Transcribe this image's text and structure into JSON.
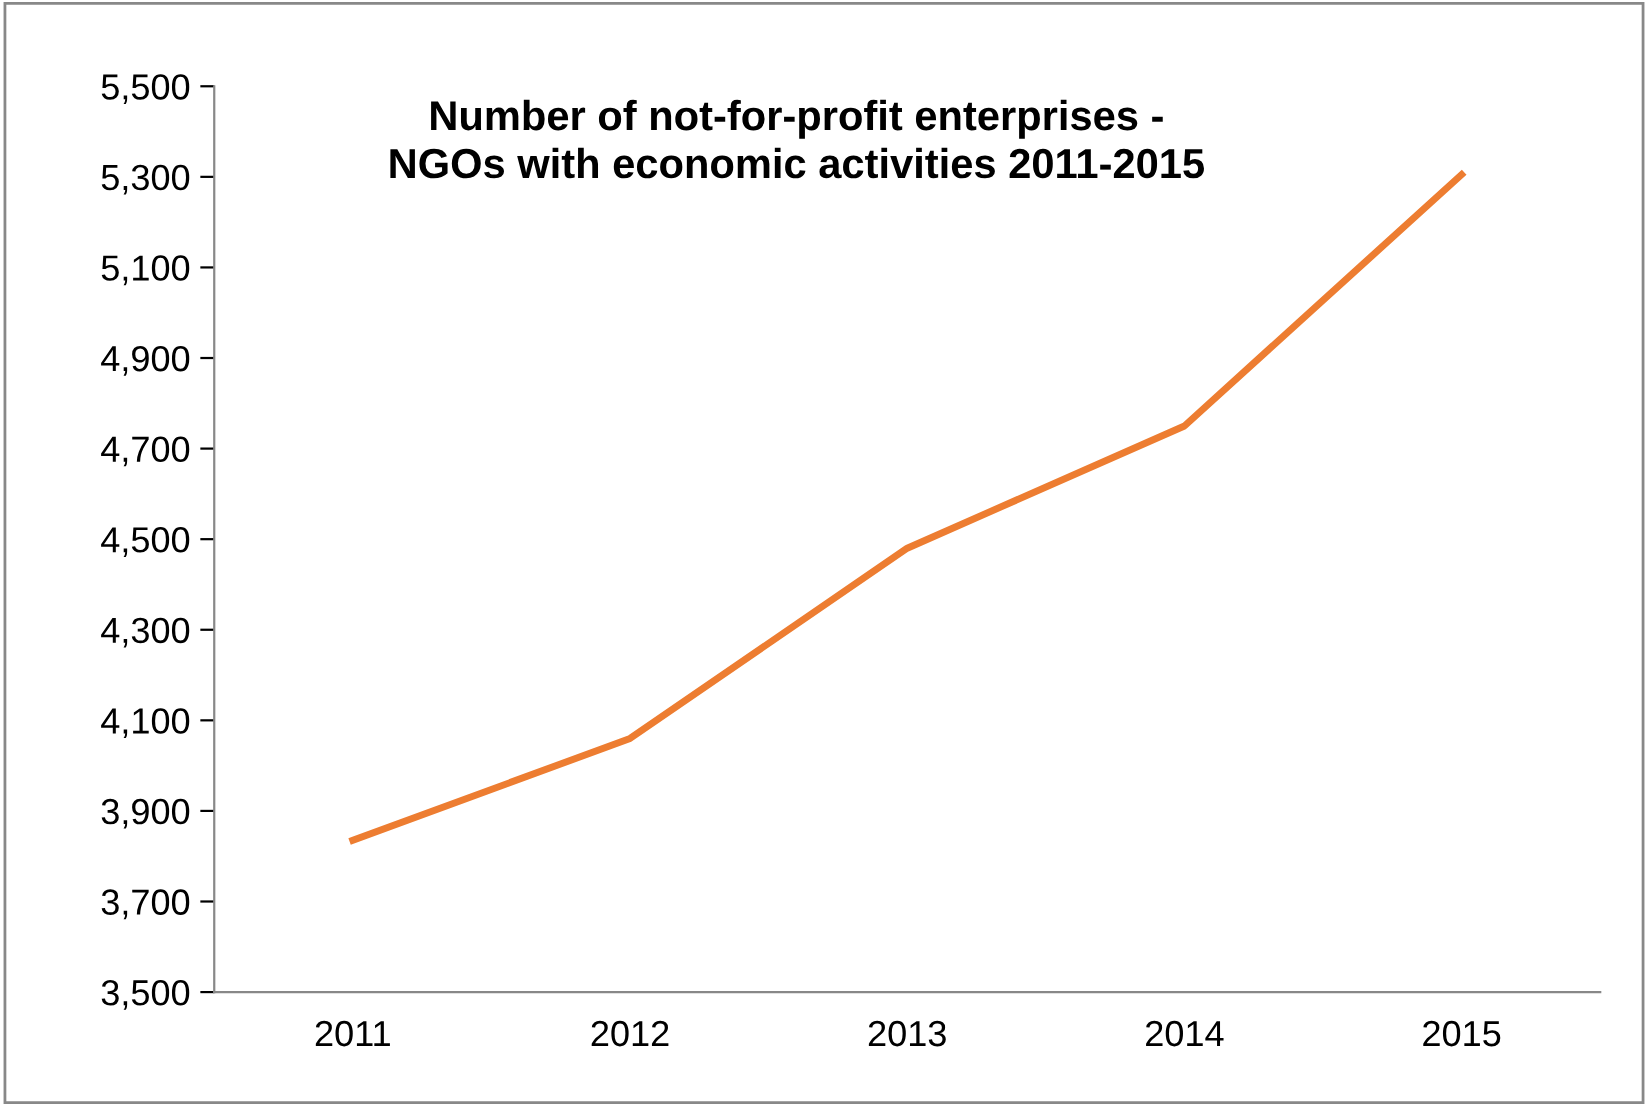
{
  "chart_data": {
    "type": "line",
    "title": "Number of not-for-profit enterprises -\nNGOs with economic activities 2011-2015",
    "categories": [
      "2011",
      "2012",
      "2013",
      "2014",
      "2015"
    ],
    "series": [
      {
        "color": "#ed7d31",
        "values": [
          3835,
          4060,
          4480,
          4750,
          5305
        ]
      }
    ],
    "ylim": [
      3500,
      5500
    ],
    "yticks": [
      {
        "value": 3500,
        "label": "3,500"
      },
      {
        "value": 3700,
        "label": "3,700"
      },
      {
        "value": 3900,
        "label": "3,900"
      },
      {
        "value": 4100,
        "label": "4,100"
      },
      {
        "value": 4300,
        "label": "4,300"
      },
      {
        "value": 4500,
        "label": "4,500"
      },
      {
        "value": 4700,
        "label": "4,700"
      },
      {
        "value": 4900,
        "label": "4,900"
      },
      {
        "value": 5100,
        "label": "5,100"
      },
      {
        "value": 5300,
        "label": "5,300"
      },
      {
        "value": 5500,
        "label": "5,500"
      }
    ],
    "line_style": "solid"
  }
}
